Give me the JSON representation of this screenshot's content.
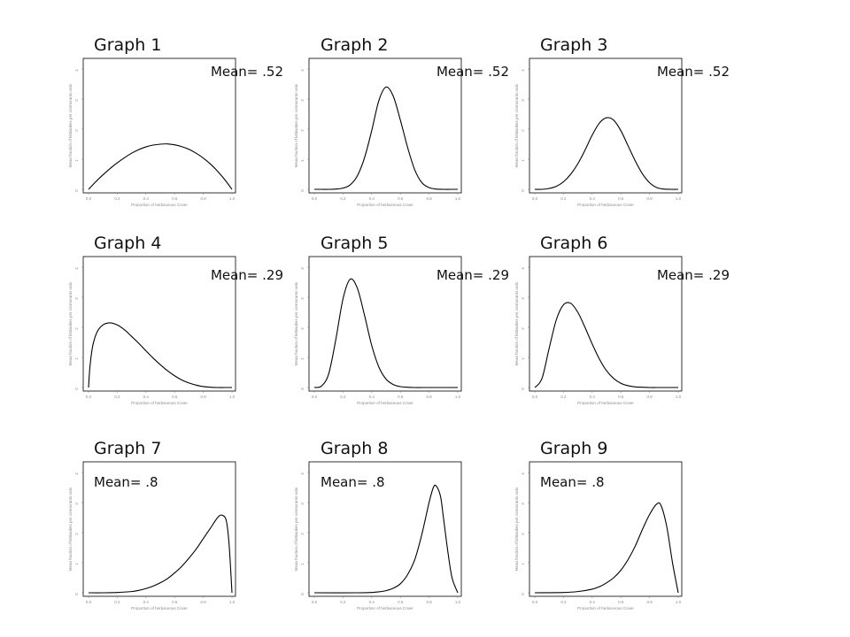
{
  "chart_data": [
    {
      "type": "line",
      "title": "Graph 1",
      "annotation": "Mean= .52",
      "ylabel": "Mean fraction of kittiwakes per cormorants ratio",
      "xlabel": "Proportion of herbaceous Cover",
      "xlim": [
        0,
        1
      ],
      "ylim": [
        0,
        4
      ],
      "xticks": [
        "0.0",
        "0.2",
        "0.4",
        "0.6",
        "0.8",
        "1.0"
      ],
      "yticks": [
        "0",
        "1",
        "2",
        "3",
        "4"
      ],
      "x": [
        0,
        0.05,
        0.1,
        0.15,
        0.2,
        0.25,
        0.3,
        0.35,
        0.4,
        0.45,
        0.5,
        0.55,
        0.6,
        0.65,
        0.7,
        0.75,
        0.8,
        0.85,
        0.9,
        0.95,
        1
      ],
      "y": [
        0,
        0.25,
        0.48,
        0.69,
        0.88,
        1.05,
        1.2,
        1.32,
        1.41,
        1.47,
        1.5,
        1.51,
        1.48,
        1.42,
        1.33,
        1.2,
        1.04,
        0.84,
        0.6,
        0.32,
        0
      ]
    },
    {
      "type": "line",
      "title": "Graph 2",
      "annotation": "Mean= .52",
      "ylabel": "Mean fraction of kittiwakes per cormorants ratio",
      "xlabel": "Proportion of herbaceous Cover",
      "xlim": [
        0,
        1
      ],
      "ylim": [
        0,
        4
      ],
      "xticks": [
        "0.0",
        "0.2",
        "0.4",
        "0.6",
        "0.8",
        "1.0"
      ],
      "yticks": [
        "0",
        "1",
        "2",
        "3",
        "4"
      ],
      "x": [
        0,
        0.05,
        0.1,
        0.15,
        0.2,
        0.25,
        0.3,
        0.35,
        0.4,
        0.45,
        0.5,
        0.55,
        0.6,
        0.65,
        0.7,
        0.75,
        0.8,
        0.85,
        0.9,
        0.95,
        1
      ],
      "y": [
        0,
        0,
        0,
        0.01,
        0.04,
        0.15,
        0.45,
        1.05,
        1.95,
        2.95,
        3.4,
        3.1,
        2.3,
        1.4,
        0.65,
        0.22,
        0.06,
        0.01,
        0,
        0,
        0
      ]
    },
    {
      "type": "line",
      "title": "Graph 3",
      "annotation": "Mean= .52",
      "ylabel": "Mean fraction of kittiwakes per cormorants ratio",
      "xlabel": "Proportion of herbaceous Cover",
      "xlim": [
        0,
        1
      ],
      "ylim": [
        0,
        4
      ],
      "xticks": [
        "0.0",
        "0.2",
        "0.4",
        "0.6",
        "0.8",
        "1.0"
      ],
      "yticks": [
        "0",
        "1",
        "2",
        "3",
        "4"
      ],
      "x": [
        0,
        0.05,
        0.1,
        0.15,
        0.2,
        0.25,
        0.3,
        0.35,
        0.4,
        0.45,
        0.5,
        0.55,
        0.6,
        0.65,
        0.7,
        0.75,
        0.8,
        0.85,
        0.9,
        0.95,
        1
      ],
      "y": [
        0,
        0,
        0.03,
        0.1,
        0.25,
        0.5,
        0.85,
        1.3,
        1.8,
        2.2,
        2.38,
        2.3,
        1.95,
        1.45,
        0.95,
        0.52,
        0.22,
        0.06,
        0.01,
        0,
        0
      ]
    },
    {
      "type": "line",
      "title": "Graph 4",
      "annotation": "Mean= .29",
      "ylabel": "Mean fraction of kittiwakes per cormorants ratio",
      "xlabel": "Proportion of herbaceous Cover",
      "xlim": [
        0,
        1
      ],
      "ylim": [
        0,
        4
      ],
      "xticks": [
        "0.0",
        "0.2",
        "0.4",
        "0.6",
        "0.8",
        "1.0"
      ],
      "yticks": [
        "0",
        "1",
        "2",
        "3",
        "4"
      ],
      "x": [
        0,
        0.01,
        0.03,
        0.06,
        0.1,
        0.15,
        0.2,
        0.25,
        0.3,
        0.35,
        0.4,
        0.45,
        0.5,
        0.55,
        0.6,
        0.65,
        0.7,
        0.75,
        0.8,
        0.85,
        0.9,
        0.95,
        1
      ],
      "y": [
        0,
        0.7,
        1.4,
        1.85,
        2.08,
        2.15,
        2.08,
        1.92,
        1.7,
        1.47,
        1.22,
        0.98,
        0.76,
        0.56,
        0.39,
        0.25,
        0.15,
        0.08,
        0.03,
        0.01,
        0,
        0,
        0
      ]
    },
    {
      "type": "line",
      "title": "Graph 5",
      "annotation": "Mean= .29",
      "ylabel": "Mean fraction of kittiwakes per cormorants ratio",
      "xlabel": "Proportion of herbaceous Cover",
      "xlim": [
        0,
        1
      ],
      "ylim": [
        0,
        4
      ],
      "xticks": [
        "0.0",
        "0.2",
        "0.4",
        "0.6",
        "0.8",
        "1.0"
      ],
      "yticks": [
        "0",
        "1",
        "2",
        "3",
        "4"
      ],
      "x": [
        0,
        0.05,
        0.1,
        0.15,
        0.2,
        0.25,
        0.3,
        0.35,
        0.4,
        0.45,
        0.5,
        0.55,
        0.6,
        0.65,
        0.7,
        0.75,
        0.8,
        0.85,
        0.9,
        0.95,
        1
      ],
      "y": [
        0,
        0.05,
        0.45,
        1.6,
        2.95,
        3.6,
        3.3,
        2.4,
        1.4,
        0.68,
        0.28,
        0.1,
        0.03,
        0.01,
        0,
        0,
        0,
        0,
        0,
        0,
        0
      ]
    },
    {
      "type": "line",
      "title": "Graph 6",
      "annotation": "Mean= .29",
      "ylabel": "Mean fraction of kittiwakes per cormorants ratio",
      "xlabel": "Proportion of herbaceous Cover",
      "xlim": [
        0,
        1
      ],
      "ylim": [
        0,
        4
      ],
      "xticks": [
        "0.0",
        "0.2",
        "0.4",
        "0.6",
        "0.8",
        "1.0"
      ],
      "yticks": [
        "0",
        "1",
        "2",
        "3",
        "4"
      ],
      "x": [
        0,
        0.05,
        0.1,
        0.15,
        0.2,
        0.25,
        0.3,
        0.35,
        0.4,
        0.45,
        0.5,
        0.55,
        0.6,
        0.65,
        0.7,
        0.75,
        0.8,
        0.85,
        0.9,
        0.95,
        1
      ],
      "y": [
        0,
        0.3,
        1.3,
        2.25,
        2.75,
        2.8,
        2.5,
        2.0,
        1.45,
        0.95,
        0.56,
        0.3,
        0.14,
        0.06,
        0.02,
        0.01,
        0,
        0,
        0,
        0,
        0
      ]
    },
    {
      "type": "line",
      "title": "Graph 7",
      "annotation": "Mean= .8",
      "ylabel": "Mean fraction of kittiwakes per cormorants ratio",
      "xlabel": "Proportion of herbaceous Cover",
      "xlim": [
        0,
        1
      ],
      "ylim": [
        0,
        4
      ],
      "xticks": [
        "0.0",
        "0.2",
        "0.4",
        "0.6",
        "0.8",
        "1.0"
      ],
      "yticks": [
        "0",
        "1",
        "2",
        "3",
        "4"
      ],
      "x": [
        0,
        0.1,
        0.2,
        0.3,
        0.35,
        0.4,
        0.45,
        0.5,
        0.55,
        0.6,
        0.65,
        0.7,
        0.75,
        0.8,
        0.85,
        0.9,
        0.93,
        0.96,
        0.98,
        1
      ],
      "y": [
        0,
        0,
        0.01,
        0.04,
        0.08,
        0.14,
        0.22,
        0.33,
        0.47,
        0.66,
        0.88,
        1.15,
        1.45,
        1.8,
        2.15,
        2.5,
        2.58,
        2.4,
        1.6,
        0
      ]
    },
    {
      "type": "line",
      "title": "Graph 8",
      "annotation": "Mean= .8",
      "ylabel": "Mean fraction of kittiwakes per cormorants ratio",
      "xlabel": "Proportion of herbaceous Cover",
      "xlim": [
        0,
        1
      ],
      "ylim": [
        0,
        4
      ],
      "xticks": [
        "0.0",
        "0.2",
        "0.4",
        "0.6",
        "0.8",
        "1.0"
      ],
      "yticks": [
        "0",
        "1",
        "2",
        "3",
        "4"
      ],
      "x": [
        0,
        0.3,
        0.4,
        0.45,
        0.5,
        0.55,
        0.6,
        0.65,
        0.7,
        0.75,
        0.8,
        0.83,
        0.85,
        0.88,
        0.9,
        0.93,
        0.96,
        1
      ],
      "y": [
        0,
        0,
        0.01,
        0.03,
        0.07,
        0.15,
        0.3,
        0.6,
        1.1,
        1.95,
        3.0,
        3.5,
        3.55,
        3.2,
        2.5,
        1.4,
        0.5,
        0
      ]
    },
    {
      "type": "line",
      "title": "Graph 9",
      "annotation": "Mean= .8",
      "ylabel": "Mean fraction of kittiwakes per cormorants ratio",
      "xlabel": "Proportion of herbaceous Cover",
      "xlim": [
        0,
        1
      ],
      "ylim": [
        0,
        4
      ],
      "xticks": [
        "0.0",
        "0.2",
        "0.4",
        "0.6",
        "0.8",
        "1.0"
      ],
      "yticks": [
        "0",
        "1",
        "2",
        "3",
        "4"
      ],
      "x": [
        0,
        0.2,
        0.3,
        0.4,
        0.45,
        0.5,
        0.55,
        0.6,
        0.65,
        0.7,
        0.75,
        0.8,
        0.85,
        0.88,
        0.92,
        0.96,
        1
      ],
      "y": [
        0,
        0.01,
        0.04,
        0.12,
        0.2,
        0.33,
        0.5,
        0.75,
        1.1,
        1.55,
        2.1,
        2.6,
        2.95,
        2.9,
        2.2,
        1.0,
        0
      ]
    }
  ]
}
